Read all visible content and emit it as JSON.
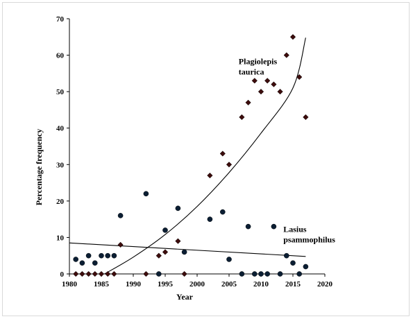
{
  "chart_data": {
    "type": "scatter",
    "title": "",
    "xlabel": "Year",
    "ylabel": "Percentage frequency",
    "xlim": [
      1980,
      2020
    ],
    "ylim": [
      0,
      70
    ],
    "xticks": [
      1980,
      1985,
      1990,
      1995,
      2000,
      2005,
      2010,
      2015,
      2020
    ],
    "yticks": [
      0,
      10,
      20,
      30,
      40,
      50,
      60,
      70
    ],
    "grid": false,
    "legend": "none",
    "annotations": [
      {
        "lines": [
          "Plagiolepis",
          "taurica"
        ],
        "x": 2006.5,
        "y": 57.5
      },
      {
        "lines": [
          "Lasius",
          "psammophilus"
        ],
        "x": 2013.5,
        "y": 11.5
      }
    ],
    "series": [
      {
        "name": "Plagiolepis taurica",
        "marker": "diamond",
        "color": "#3d0c0c",
        "points": [
          [
            1981,
            0
          ],
          [
            1982,
            0
          ],
          [
            1983,
            0
          ],
          [
            1984,
            0
          ],
          [
            1985,
            0
          ],
          [
            1986,
            0
          ],
          [
            1987,
            0
          ],
          [
            1988,
            8
          ],
          [
            1992,
            0
          ],
          [
            1994,
            5
          ],
          [
            1995,
            6
          ],
          [
            1997,
            9
          ],
          [
            1998,
            0
          ],
          [
            2002,
            27
          ],
          [
            2004,
            33
          ],
          [
            2005,
            30
          ],
          [
            2007,
            43
          ],
          [
            2008,
            47
          ],
          [
            2009,
            53
          ],
          [
            2010,
            50
          ],
          [
            2011,
            53
          ],
          [
            2012,
            52
          ],
          [
            2013,
            50
          ],
          [
            2014,
            60
          ],
          [
            2015,
            65
          ],
          [
            2016,
            54
          ],
          [
            2017,
            43
          ]
        ],
        "trend": {
          "kind": "polynomial",
          "x": [
            1985.5,
            1990,
            1995,
            2000,
            2005,
            2010,
            2015,
            2017
          ],
          "y": [
            0,
            4.6,
            10.8,
            18.5,
            27.8,
            38.6,
            51.0,
            64.8
          ]
        }
      },
      {
        "name": "Lasius psammophilus",
        "marker": "circle",
        "color": "#0b1e33",
        "points": [
          [
            1981,
            4
          ],
          [
            1982,
            3
          ],
          [
            1983,
            5
          ],
          [
            1984,
            3
          ],
          [
            1985,
            5
          ],
          [
            1986,
            5
          ],
          [
            1987,
            5
          ],
          [
            1988,
            16
          ],
          [
            1992,
            22
          ],
          [
            1994,
            0
          ],
          [
            1995,
            12
          ],
          [
            1997,
            18
          ],
          [
            1998,
            6
          ],
          [
            2002,
            15
          ],
          [
            2004,
            17
          ],
          [
            2005,
            4
          ],
          [
            2007,
            0
          ],
          [
            2008,
            13
          ],
          [
            2009,
            0
          ],
          [
            2010,
            0
          ],
          [
            2011,
            0
          ],
          [
            2012,
            13
          ],
          [
            2013,
            0
          ],
          [
            2014,
            5
          ],
          [
            2015,
            3
          ],
          [
            2016,
            0
          ],
          [
            2017,
            2
          ]
        ],
        "trend": {
          "kind": "linear",
          "x": [
            1980,
            2017
          ],
          "y": [
            8.5,
            4.8
          ]
        }
      }
    ]
  }
}
